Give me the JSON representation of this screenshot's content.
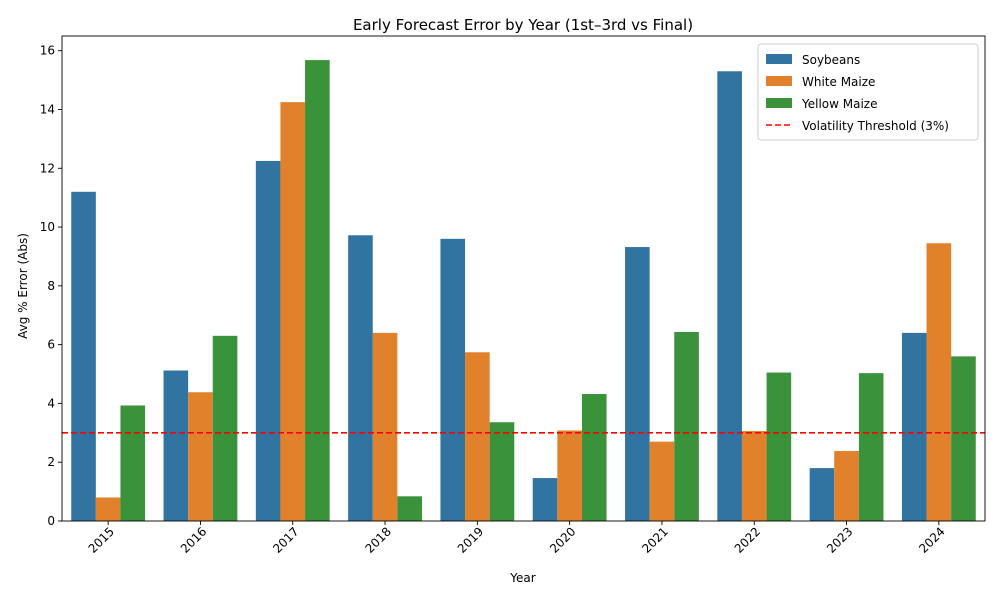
{
  "chart_data": {
    "type": "bar",
    "title": "Early Forecast Error by Year (1st–3rd vs Final)",
    "xlabel": "Year",
    "ylabel": "Avg % Error (Abs)",
    "ylim": [
      0,
      16.5
    ],
    "yticks": [
      "0",
      "2",
      "4",
      "6",
      "8",
      "10",
      "12",
      "14",
      "16"
    ],
    "categories": [
      "2015",
      "2016",
      "2017",
      "2018",
      "2019",
      "2020",
      "2021",
      "2022",
      "2023",
      "2024"
    ],
    "series": [
      {
        "name": "Soybeans",
        "color": "#3274a1",
        "values": [
          11.2,
          5.12,
          12.25,
          9.72,
          9.6,
          1.46,
          9.32,
          15.3,
          1.8,
          6.4
        ]
      },
      {
        "name": "White Maize",
        "color": "#e1812c",
        "values": [
          0.8,
          4.38,
          14.25,
          6.4,
          5.74,
          3.08,
          2.7,
          3.06,
          2.38,
          9.45
        ]
      },
      {
        "name": "Yellow Maize",
        "color": "#3a923a",
        "values": [
          3.93,
          6.3,
          15.68,
          0.84,
          3.36,
          4.32,
          6.43,
          5.05,
          5.03,
          5.6
        ]
      }
    ],
    "threshold": {
      "label": "Volatility Threshold (3%)",
      "value": 3,
      "color": "#ff0000",
      "style": "dashed"
    },
    "grid": false,
    "legend_position": "top-right"
  }
}
